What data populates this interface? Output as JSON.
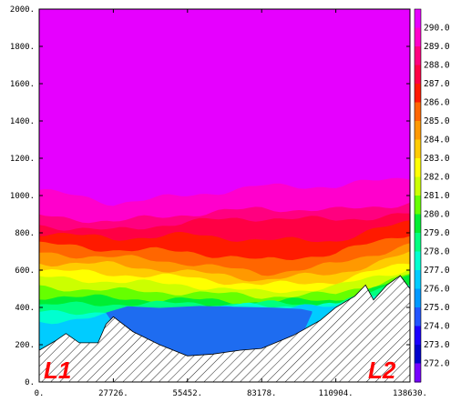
{
  "chart_data": {
    "type": "heatmap",
    "title": "",
    "xlabel": "",
    "ylabel": "",
    "xlim": [
      0,
      138630
    ],
    "ylim": [
      0,
      2000
    ],
    "x_ticks": [
      "0.",
      "27726.",
      "55452.",
      "83178.",
      "110904.",
      "138630."
    ],
    "y_ticks": [
      "0.",
      "200.",
      "400.",
      "600.",
      "800.",
      "1000.",
      "1200.",
      "1400.",
      "1600.",
      "1800.",
      "2000."
    ],
    "colorbar": {
      "labels": [
        "290.0",
        "289.0",
        "288.0",
        "287.0",
        "286.0",
        "285.0",
        "284.0",
        "283.0",
        "282.0",
        "281.0",
        "280.0",
        "279.0",
        "278.0",
        "277.0",
        "276.0",
        "275.0",
        "274.0",
        "273.0",
        "272.0"
      ],
      "colors": [
        "#e600ff",
        "#ff00cc",
        "#ff0080",
        "#ff0044",
        "#ff1a00",
        "#ff6600",
        "#ff9900",
        "#ffcc00",
        "#ffff00",
        "#ccff00",
        "#66ff00",
        "#00ee33",
        "#00ff80",
        "#00ffd0",
        "#00ccff",
        "#0099ff",
        "#2255ff",
        "#1a00ff",
        "#0000cc",
        "#7700ff"
      ]
    },
    "fill_colors": {
      "background": "#e600ff",
      "cold_pool": "#1e6cf0",
      "cold_core": "#1a00ff",
      "terrain_fill": "#ffffff",
      "hatch": "#222222"
    },
    "isotherms": [
      {
        "level": "290+",
        "color": "#ff00cc",
        "y": [
          1030,
          960,
          1000,
          1050,
          1050,
          1100
        ]
      },
      {
        "level": "288",
        "color": "#ff0080",
        "y": [
          890,
          860,
          900,
          930,
          920,
          960
        ]
      },
      {
        "level": "287",
        "color": "#ff0044",
        "y": [
          840,
          810,
          860,
          880,
          870,
          900
        ]
      },
      {
        "level": "286",
        "color": "#ff1a00",
        "y": [
          800,
          770,
          790,
          760,
          760,
          860
        ]
      },
      {
        "level": "285",
        "color": "#ff6600",
        "y": [
          740,
          710,
          700,
          650,
          690,
          800
        ]
      },
      {
        "level": "284",
        "color": "#ff9900",
        "y": [
          690,
          670,
          640,
          580,
          630,
          740
        ]
      },
      {
        "level": "283",
        "color": "#ffcc00",
        "y": [
          640,
          630,
          590,
          550,
          580,
          690
        ]
      },
      {
        "level": "282",
        "color": "#ffff00",
        "y": [
          600,
          580,
          560,
          520,
          540,
          640
        ]
      },
      {
        "level": "281",
        "color": "#ccff00",
        "y": [
          560,
          540,
          520,
          480,
          510,
          610
        ]
      },
      {
        "level": "280",
        "color": "#66ff00",
        "y": [
          510,
          490,
          480,
          460,
          470,
          580
        ]
      },
      {
        "level": "279",
        "color": "#00ee33",
        "y": [
          460,
          450,
          440,
          430,
          440,
          560
        ]
      },
      {
        "level": "278",
        "color": "#00ff80",
        "y": [
          410,
          420,
          420,
          420,
          420,
          540
        ]
      },
      {
        "level": "277",
        "color": "#00ffd0",
        "y": [
          370,
          380,
          400,
          410,
          410,
          520
        ]
      },
      {
        "level": "276",
        "color": "#00ccff",
        "y": [
          320,
          360,
          390,
          400,
          400,
          500
        ]
      }
    ],
    "cold_pool": {
      "x": [
        25000,
        33000,
        45000,
        60000,
        75000,
        88000,
        98000,
        102000
      ],
      "top": [
        370,
        400,
        400,
        400,
        400,
        400,
        390,
        370
      ],
      "bottom": [
        370,
        200,
        150,
        130,
        140,
        180,
        240,
        370
      ]
    },
    "terrain": {
      "x": [
        0,
        6000,
        10000,
        15000,
        22000,
        25000,
        27726,
        35000,
        45000,
        55452,
        65000,
        75000,
        83178,
        95000,
        105000,
        110904,
        118000,
        122000,
        125000,
        130000,
        135000,
        138630
      ],
      "y": [
        170,
        220,
        260,
        210,
        210,
        310,
        350,
        270,
        200,
        140,
        150,
        170,
        180,
        250,
        330,
        400,
        460,
        520,
        440,
        520,
        570,
        500
      ]
    },
    "annotations": [
      "L1",
      "L2"
    ]
  }
}
